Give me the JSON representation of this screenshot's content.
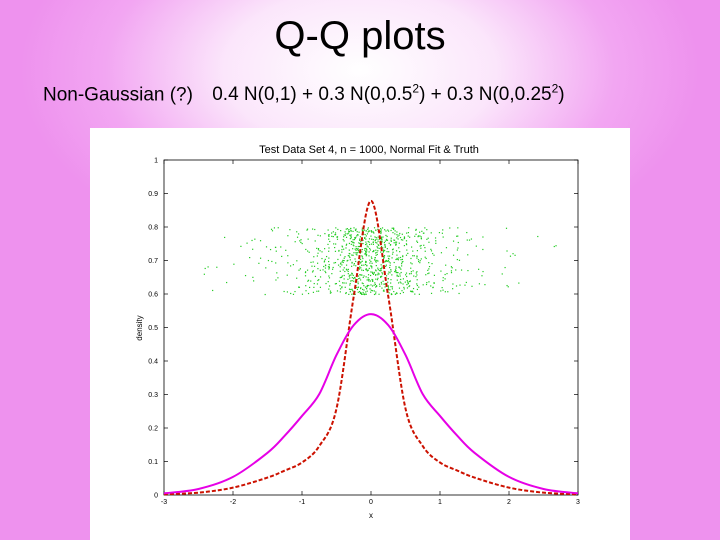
{
  "slide": {
    "title": "Q-Q plots",
    "subtitle_left": "Non-Gaussian (?)",
    "formula_parts": [
      "0.4 N(0,1) + 0.3 N(0,0.5",
      "2",
      ") + 0.3 N(0,0.25",
      "2",
      ")"
    ]
  },
  "colors": {
    "background": "#ee92ee",
    "normal_fit": "#e600e6",
    "truth": "#cc1100",
    "scatter": "#22cc22"
  },
  "chart_data": {
    "type": "line",
    "title": "Test Data Set 4, n = 1000, Normal Fit & Truth",
    "xlabel": "x",
    "ylabel": "density",
    "xlim": [
      -3,
      3
    ],
    "ylim": [
      0,
      1
    ],
    "xticks": [
      "-3",
      "-2",
      "-1",
      "0",
      "1",
      "2",
      "3"
    ],
    "yticks": [
      "0",
      "0.1",
      "0.2",
      "0.3",
      "0.4",
      "0.5",
      "0.6",
      "0.7",
      "0.8",
      "0.9",
      "1"
    ],
    "grid": false,
    "series": [
      {
        "label": "normal fit",
        "style": "solid",
        "x": [
          -3,
          -2.5,
          -2,
          -1.5,
          -1.25,
          -1,
          -0.75,
          -0.5,
          -0.25,
          0,
          0.25,
          0.5,
          0.75,
          1,
          1.25,
          1.5,
          2,
          2.5,
          3
        ],
        "y": [
          0.005,
          0.018,
          0.054,
          0.126,
          0.177,
          0.236,
          0.301,
          0.418,
          0.507,
          0.54,
          0.507,
          0.418,
          0.301,
          0.236,
          0.177,
          0.126,
          0.054,
          0.018,
          0.005
        ]
      },
      {
        "label": "truth",
        "style": "dashed",
        "x": [
          -3,
          -2.5,
          -2,
          -1.5,
          -1.25,
          -1,
          -0.75,
          -0.5,
          -0.25,
          0,
          0.25,
          0.5,
          0.75,
          1,
          1.25,
          1.5,
          2,
          2.5,
          3
        ],
        "y": [
          0.002,
          0.007,
          0.022,
          0.052,
          0.073,
          0.097,
          0.146,
          0.258,
          0.593,
          0.878,
          0.593,
          0.258,
          0.146,
          0.097,
          0.073,
          0.052,
          0.022,
          0.007,
          0.002
        ]
      }
    ],
    "scatter": {
      "n": 1000,
      "y_band": [
        0.6,
        0.8
      ],
      "x_range": [
        -2.7,
        2.7
      ]
    }
  }
}
